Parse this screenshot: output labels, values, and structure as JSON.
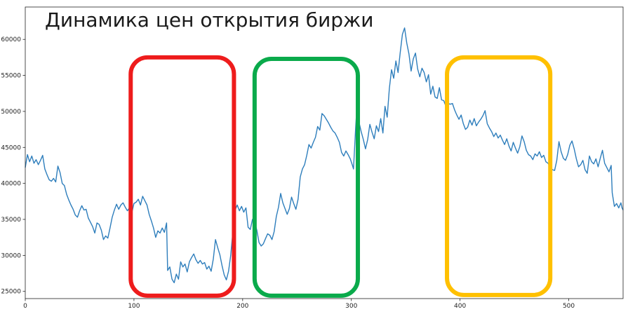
{
  "chart_data": {
    "type": "line",
    "title": "Динамика цен открытия биржи",
    "xlabel": "",
    "ylabel": "",
    "xlim": [
      0,
      550
    ],
    "ylim": [
      24000,
      64500
    ],
    "grid": false,
    "x_ticks": [
      0,
      100,
      200,
      300,
      400,
      500
    ],
    "x_tick_labels": [
      "0",
      "100",
      "200",
      "300",
      "400",
      "500"
    ],
    "y_ticks": [
      25000,
      30000,
      35000,
      40000,
      45000,
      50000,
      55000,
      60000
    ],
    "y_tick_labels": [
      "25000",
      "30000",
      "35000",
      "40000",
      "45000",
      "50000",
      "55000",
      "60000"
    ],
    "series": [
      {
        "color": "#2e7ebc",
        "points": [
          [
            0,
            42200
          ],
          [
            2,
            44000
          ],
          [
            4,
            43000
          ],
          [
            6,
            43800
          ],
          [
            8,
            42800
          ],
          [
            10,
            43300
          ],
          [
            12,
            42600
          ],
          [
            14,
            43200
          ],
          [
            16,
            43900
          ],
          [
            18,
            42000
          ],
          [
            20,
            41200
          ],
          [
            22,
            40500
          ],
          [
            24,
            40300
          ],
          [
            26,
            40700
          ],
          [
            28,
            40200
          ],
          [
            30,
            42400
          ],
          [
            32,
            41500
          ],
          [
            34,
            40000
          ],
          [
            36,
            39700
          ],
          [
            38,
            38500
          ],
          [
            40,
            37700
          ],
          [
            42,
            37000
          ],
          [
            44,
            36400
          ],
          [
            46,
            35600
          ],
          [
            48,
            35300
          ],
          [
            50,
            36200
          ],
          [
            52,
            36900
          ],
          [
            54,
            36300
          ],
          [
            56,
            36400
          ],
          [
            58,
            35200
          ],
          [
            60,
            34600
          ],
          [
            62,
            34000
          ],
          [
            64,
            33100
          ],
          [
            66,
            34500
          ],
          [
            68,
            34300
          ],
          [
            70,
            33500
          ],
          [
            72,
            32200
          ],
          [
            74,
            32700
          ],
          [
            76,
            32400
          ],
          [
            78,
            33800
          ],
          [
            80,
            35300
          ],
          [
            82,
            36300
          ],
          [
            84,
            37100
          ],
          [
            86,
            36400
          ],
          [
            88,
            37000
          ],
          [
            90,
            37300
          ],
          [
            92,
            36700
          ],
          [
            94,
            36200
          ],
          [
            96,
            36600
          ],
          [
            98,
            35900
          ],
          [
            100,
            37200
          ],
          [
            102,
            37400
          ],
          [
            104,
            37800
          ],
          [
            106,
            37000
          ],
          [
            108,
            38200
          ],
          [
            110,
            37600
          ],
          [
            112,
            37000
          ],
          [
            114,
            35700
          ],
          [
            116,
            34800
          ],
          [
            118,
            33800
          ],
          [
            120,
            32500
          ],
          [
            122,
            33400
          ],
          [
            124,
            33100
          ],
          [
            126,
            33800
          ],
          [
            128,
            33200
          ],
          [
            130,
            34500
          ],
          [
            131,
            27900
          ],
          [
            133,
            28400
          ],
          [
            135,
            26700
          ],
          [
            137,
            26200
          ],
          [
            139,
            27400
          ],
          [
            141,
            26700
          ],
          [
            143,
            29100
          ],
          [
            145,
            28400
          ],
          [
            147,
            28800
          ],
          [
            149,
            27700
          ],
          [
            151,
            29100
          ],
          [
            153,
            29700
          ],
          [
            155,
            30200
          ],
          [
            157,
            29400
          ],
          [
            159,
            28900
          ],
          [
            161,
            29300
          ],
          [
            163,
            28800
          ],
          [
            165,
            29000
          ],
          [
            167,
            28100
          ],
          [
            169,
            28500
          ],
          [
            171,
            27800
          ],
          [
            173,
            29500
          ],
          [
            175,
            32200
          ],
          [
            177,
            31100
          ],
          [
            179,
            30100
          ],
          [
            181,
            28600
          ],
          [
            183,
            27300
          ],
          [
            185,
            26600
          ],
          [
            187,
            27800
          ],
          [
            189,
            30000
          ],
          [
            191,
            33300
          ],
          [
            193,
            36300
          ],
          [
            195,
            37000
          ],
          [
            197,
            36200
          ],
          [
            199,
            36800
          ],
          [
            201,
            36000
          ],
          [
            203,
            36600
          ],
          [
            205,
            33900
          ],
          [
            207,
            33600
          ],
          [
            209,
            35000
          ],
          [
            211,
            34700
          ],
          [
            213,
            33500
          ],
          [
            215,
            31800
          ],
          [
            217,
            31300
          ],
          [
            219,
            31600
          ],
          [
            221,
            32300
          ],
          [
            223,
            33000
          ],
          [
            225,
            32800
          ],
          [
            227,
            32200
          ],
          [
            229,
            33300
          ],
          [
            231,
            35400
          ],
          [
            233,
            36700
          ],
          [
            235,
            38600
          ],
          [
            237,
            37300
          ],
          [
            239,
            36500
          ],
          [
            241,
            35700
          ],
          [
            243,
            36500
          ],
          [
            245,
            38100
          ],
          [
            247,
            37200
          ],
          [
            249,
            36400
          ],
          [
            251,
            37800
          ],
          [
            253,
            40900
          ],
          [
            255,
            42000
          ],
          [
            257,
            42600
          ],
          [
            259,
            43900
          ],
          [
            261,
            45400
          ],
          [
            263,
            44900
          ],
          [
            265,
            45700
          ],
          [
            267,
            46400
          ],
          [
            269,
            47900
          ],
          [
            271,
            47400
          ],
          [
            273,
            49700
          ],
          [
            275,
            49400
          ],
          [
            277,
            48900
          ],
          [
            279,
            48400
          ],
          [
            281,
            47800
          ],
          [
            283,
            47300
          ],
          [
            285,
            47000
          ],
          [
            287,
            46400
          ],
          [
            289,
            45700
          ],
          [
            291,
            44300
          ],
          [
            293,
            43800
          ],
          [
            295,
            44500
          ],
          [
            297,
            44000
          ],
          [
            299,
            43400
          ],
          [
            301,
            42500
          ],
          [
            302,
            42000
          ],
          [
            304,
            47800
          ],
          [
            305,
            50400
          ],
          [
            307,
            48500
          ],
          [
            309,
            47200
          ],
          [
            311,
            46100
          ],
          [
            313,
            44800
          ],
          [
            315,
            46100
          ],
          [
            317,
            48200
          ],
          [
            319,
            47100
          ],
          [
            321,
            46200
          ],
          [
            323,
            48000
          ],
          [
            325,
            47200
          ],
          [
            327,
            49000
          ],
          [
            329,
            47000
          ],
          [
            331,
            50700
          ],
          [
            333,
            49200
          ],
          [
            335,
            53200
          ],
          [
            337,
            55800
          ],
          [
            339,
            54600
          ],
          [
            341,
            57000
          ],
          [
            343,
            55400
          ],
          [
            345,
            58200
          ],
          [
            347,
            60700
          ],
          [
            349,
            61600
          ],
          [
            351,
            59500
          ],
          [
            353,
            58000
          ],
          [
            355,
            55600
          ],
          [
            357,
            57300
          ],
          [
            359,
            58100
          ],
          [
            361,
            55900
          ],
          [
            363,
            54800
          ],
          [
            365,
            56000
          ],
          [
            367,
            55400
          ],
          [
            369,
            54100
          ],
          [
            371,
            55100
          ],
          [
            373,
            52400
          ],
          [
            375,
            53500
          ],
          [
            377,
            52000
          ],
          [
            379,
            51800
          ],
          [
            381,
            53300
          ],
          [
            383,
            51600
          ],
          [
            385,
            51500
          ],
          [
            387,
            50700
          ],
          [
            389,
            51100
          ],
          [
            391,
            51000
          ],
          [
            393,
            51100
          ],
          [
            395,
            50200
          ],
          [
            397,
            49500
          ],
          [
            399,
            48900
          ],
          [
            401,
            49500
          ],
          [
            403,
            48300
          ],
          [
            405,
            47500
          ],
          [
            407,
            47800
          ],
          [
            409,
            48800
          ],
          [
            411,
            48100
          ],
          [
            413,
            49000
          ],
          [
            415,
            48000
          ],
          [
            417,
            48500
          ],
          [
            419,
            48900
          ],
          [
            421,
            49400
          ],
          [
            423,
            50100
          ],
          [
            425,
            48300
          ],
          [
            427,
            47700
          ],
          [
            429,
            47200
          ],
          [
            431,
            46500
          ],
          [
            433,
            47000
          ],
          [
            435,
            46300
          ],
          [
            437,
            46700
          ],
          [
            439,
            46000
          ],
          [
            441,
            45400
          ],
          [
            443,
            46200
          ],
          [
            445,
            45200
          ],
          [
            447,
            44500
          ],
          [
            449,
            45700
          ],
          [
            451,
            44900
          ],
          [
            453,
            44200
          ],
          [
            455,
            45100
          ],
          [
            457,
            46600
          ],
          [
            459,
            45800
          ],
          [
            461,
            44600
          ],
          [
            463,
            44000
          ],
          [
            465,
            43800
          ],
          [
            467,
            43300
          ],
          [
            469,
            44100
          ],
          [
            471,
            43800
          ],
          [
            473,
            44400
          ],
          [
            475,
            43600
          ],
          [
            477,
            43900
          ],
          [
            479,
            43000
          ],
          [
            481,
            42800
          ],
          [
            483,
            42200
          ],
          [
            485,
            41900
          ],
          [
            487,
            41800
          ],
          [
            489,
            43200
          ],
          [
            491,
            45800
          ],
          [
            493,
            44400
          ],
          [
            495,
            43500
          ],
          [
            497,
            43200
          ],
          [
            499,
            44000
          ],
          [
            501,
            45300
          ],
          [
            503,
            45900
          ],
          [
            505,
            44800
          ],
          [
            507,
            43400
          ],
          [
            509,
            42300
          ],
          [
            511,
            42600
          ],
          [
            513,
            43200
          ],
          [
            515,
            41900
          ],
          [
            517,
            41400
          ],
          [
            519,
            43800
          ],
          [
            521,
            43000
          ],
          [
            523,
            42700
          ],
          [
            525,
            43400
          ],
          [
            527,
            42300
          ],
          [
            529,
            43500
          ],
          [
            531,
            44600
          ],
          [
            533,
            42800
          ],
          [
            535,
            42200
          ],
          [
            537,
            41600
          ],
          [
            539,
            42500
          ],
          [
            540,
            38700
          ],
          [
            542,
            36800
          ],
          [
            544,
            37200
          ],
          [
            546,
            36600
          ],
          [
            548,
            37300
          ],
          [
            549,
            36600
          ],
          [
            550,
            36300
          ]
        ]
      }
    ],
    "highlight_boxes": [
      {
        "color": "#ee1c1c",
        "x_range": [
          97,
          192
        ],
        "y_range": [
          24400,
          57500
        ]
      },
      {
        "color": "#0aaa4b",
        "x_range": [
          211,
          306
        ],
        "y_range": [
          24400,
          57300
        ]
      },
      {
        "color": "#ffc000",
        "x_range": [
          388,
          483
        ],
        "y_range": [
          24500,
          57500
        ]
      }
    ],
    "colors": {
      "axis": "#222222",
      "text": "#222222",
      "background": "#ffffff"
    }
  }
}
